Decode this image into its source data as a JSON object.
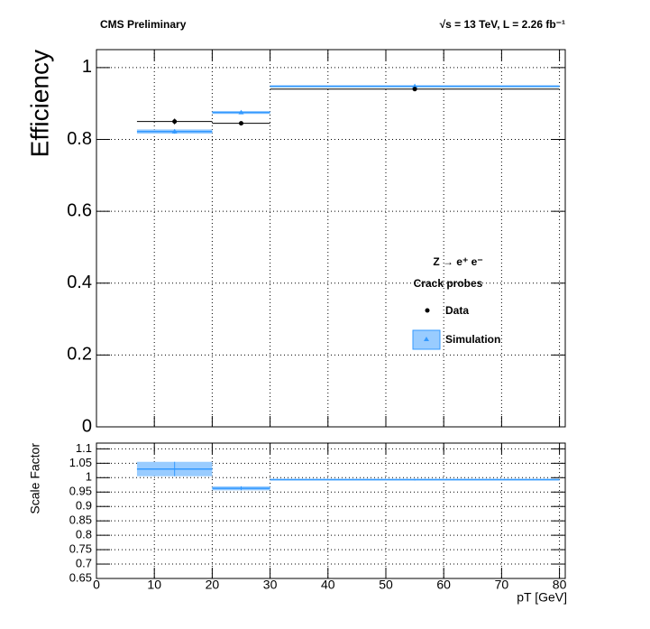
{
  "chart_data": [
    {
      "type": "efficiency",
      "header_left": "CMS Preliminary",
      "header_right": "√s = 13 TeV, L = 2.26 fb⁻¹",
      "y_label": "Efficiency",
      "legend_title": "Z → e⁺ e⁻",
      "legend_subtitle": "Crack probes",
      "bins": [
        7,
        20,
        30,
        80
      ],
      "x": [
        13.5,
        25,
        55
      ],
      "series": [
        {
          "name": "Data",
          "color": "#000000",
          "style": "points",
          "values": [
            0.85,
            0.845,
            0.94
          ],
          "errors": [
            0.008,
            0.004,
            0.003
          ]
        },
        {
          "name": "Simulation",
          "color": "#3399ff",
          "style": "band",
          "values": [
            0.822,
            0.875,
            0.948
          ],
          "errors": [
            0.006,
            0.004,
            0.003
          ]
        }
      ],
      "xlim": [
        0,
        81
      ],
      "xticks": [
        0,
        10,
        20,
        30,
        40,
        50,
        60,
        70,
        80
      ],
      "ylim": [
        0,
        1.05
      ],
      "yticks": [
        0,
        0.2,
        0.4,
        0.6,
        0.8,
        1
      ],
      "grid": true
    },
    {
      "type": "ratio",
      "y_label": "Scale Factor",
      "x_label": "pT [GeV]",
      "bins": [
        7,
        20,
        30,
        80
      ],
      "x": [
        13.5,
        25,
        55
      ],
      "series": [
        {
          "color": "#3399ff",
          "style": "band",
          "values": [
            1.03,
            0.963,
            0.993
          ],
          "errors": [
            0.025,
            0.007,
            0.003
          ]
        }
      ],
      "xlim": [
        0,
        81
      ],
      "xticks": [
        0,
        10,
        20,
        30,
        40,
        50,
        60,
        70,
        80
      ],
      "ylim": [
        0.65,
        1.12
      ],
      "yticks": [
        0.65,
        0.7,
        0.75,
        0.8,
        0.85,
        0.9,
        0.95,
        1,
        1.05,
        1.1
      ],
      "grid": true
    }
  ]
}
